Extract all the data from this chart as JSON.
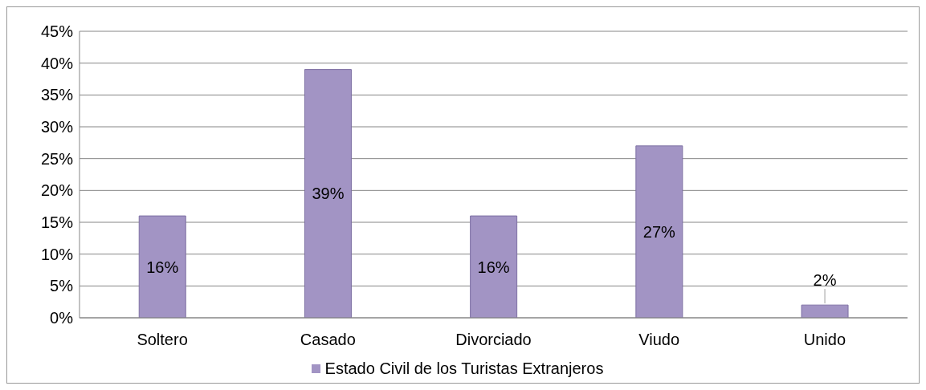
{
  "chart_data": {
    "type": "bar",
    "categories": [
      "Soltero",
      "Casado",
      "Divorciado",
      "Viudo",
      "Unido"
    ],
    "series": [
      {
        "name": "Estado Civil de los Turistas Extranjeros",
        "color": "#a294c4",
        "values": [
          16,
          39,
          16,
          27,
          2
        ],
        "value_labels": [
          "16%",
          "39%",
          "16%",
          "27%",
          "2%"
        ]
      }
    ],
    "ylim": [
      0,
      45
    ],
    "yticks": [
      {
        "value": 0,
        "label": "0%"
      },
      {
        "value": 5,
        "label": "5%"
      },
      {
        "value": 10,
        "label": "10%"
      },
      {
        "value": 15,
        "label": "15%"
      },
      {
        "value": 20,
        "label": "20%"
      },
      {
        "value": 25,
        "label": "25%"
      },
      {
        "value": 30,
        "label": "30%"
      },
      {
        "value": 35,
        "label": "35%"
      },
      {
        "value": 40,
        "label": "40%"
      },
      {
        "value": 45,
        "label": "45%"
      }
    ],
    "grid": "y",
    "legend": "bottom"
  }
}
